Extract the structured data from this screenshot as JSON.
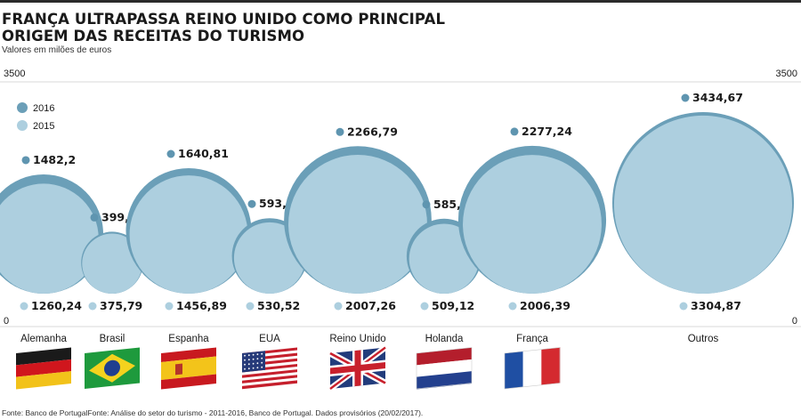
{
  "header": {
    "title_line1": "FRANÇA ULTRAPASSA REINO UNIDO COMO PRINCIPAL",
    "title_line2": "ORIGEM DAS RECEITAS DO TURISMO",
    "subtitle": "Valores em milões de euros",
    "source": "Fonte: Banco de PortugalFonte: Análise do setor do turismo - 2011-2016, Banco de Portugal. Dados provisórios (20/02/2017)."
  },
  "colors": {
    "series_2016": "#6b9fb8",
    "series_2015": "#adcfdf",
    "series_2016_marker": "#5f95b0"
  },
  "chart_data": {
    "type": "bubble",
    "title": "FRANÇA ULTRAPASSA REINO UNIDO COMO PRINCIPAL ORIGEM DAS RECEITAS DO TURISMO",
    "ylabel": "Valores em milões de euros",
    "ylim": [
      0,
      3500
    ],
    "axis_labels": {
      "left_top": "3500",
      "left_bottom": "0",
      "right_top": "3500",
      "right_bottom": "0"
    },
    "legend": [
      {
        "name": "2016",
        "color": "#6b9fb8"
      },
      {
        "name": "2015",
        "color": "#adcfdf"
      }
    ],
    "categories": [
      "Alemanha",
      "Brasil",
      "Espanha",
      "EUA",
      "Reino Unido",
      "Holanda",
      "França",
      "Outros"
    ],
    "series": [
      {
        "name": "2016",
        "values": [
          1482.2,
          399.79,
          1640.81,
          593.42,
          2266.79,
          585.66,
          2277.24,
          3434.67
        ]
      },
      {
        "name": "2015",
        "values": [
          1260.24,
          375.79,
          1456.89,
          530.52,
          2007.26,
          509.12,
          2006.39,
          3304.87
        ]
      }
    ],
    "labels_2016": [
      "1482,2",
      "399,79",
      "1640,81",
      "593,42",
      "2266,79",
      "585,66",
      "2277,24",
      "3434,67"
    ],
    "labels_2015": [
      "1260,24",
      "375,79",
      "1456,89",
      "530,52",
      "2007,26",
      "509,12",
      "2006,39",
      "3304,87"
    ],
    "flags": [
      "germany-flag",
      "brazil-flag",
      "spain-flag",
      "usa-flag",
      "uk-flag",
      "netherlands-flag",
      "france-flag",
      ""
    ]
  }
}
